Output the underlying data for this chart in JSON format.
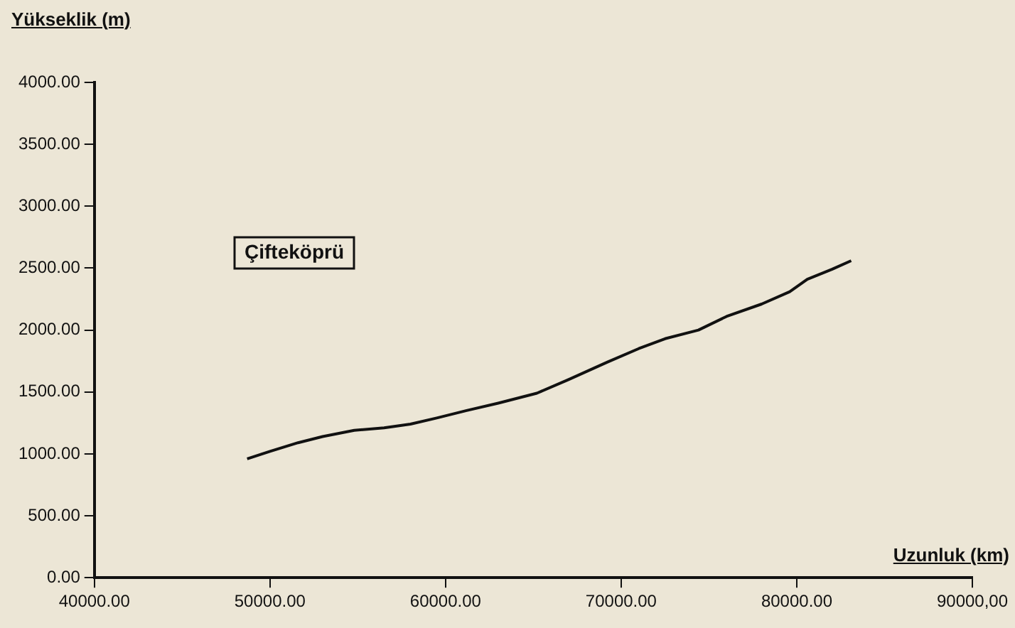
{
  "chart_data": {
    "type": "line",
    "xlabel": "Uzunluk (km)",
    "ylabel": "Yükseklik (m)",
    "annotations": [
      "Çifteköprü"
    ],
    "xlim": [
      40000,
      90000
    ],
    "xticks": [
      {
        "value": 40000,
        "label": "40000.00"
      },
      {
        "value": 50000,
        "label": "50000.00"
      },
      {
        "value": 60000,
        "label": "60000.00"
      },
      {
        "value": 70000,
        "label": "70000.00"
      },
      {
        "value": 80000,
        "label": "80000.00"
      },
      {
        "value": 90000,
        "label": "90000,00"
      }
    ],
    "ylim": [
      0,
      4000
    ],
    "yticks": [
      {
        "value": 0,
        "label": "0.00"
      },
      {
        "value": 500,
        "label": "500.00"
      },
      {
        "value": 1000,
        "label": "1000.00"
      },
      {
        "value": 1500,
        "label": "1500.00"
      },
      {
        "value": 2000,
        "label": "2000.00"
      },
      {
        "value": 2500,
        "label": "2500.00"
      },
      {
        "value": 3000,
        "label": "3000.00"
      },
      {
        "value": 3500,
        "label": "3500.00"
      },
      {
        "value": 4000,
        "label": "4000.00"
      }
    ],
    "grid": false,
    "legend": false,
    "marker": "none",
    "line_style": "solid",
    "series": [
      {
        "color": "#111111",
        "x": [
          48700,
          50000,
          51600,
          53000,
          54800,
          56500,
          58000,
          59500,
          61200,
          63000,
          65200,
          67000,
          69200,
          71000,
          72500,
          74400,
          76000,
          78000,
          79600,
          80600,
          82000,
          83100
        ],
        "values": [
          960,
          1020,
          1090,
          1140,
          1190,
          1210,
          1240,
          1290,
          1350,
          1410,
          1490,
          1600,
          1740,
          1850,
          1930,
          2000,
          2110,
          2210,
          2310,
          2410,
          2490,
          2560
        ]
      }
    ]
  }
}
